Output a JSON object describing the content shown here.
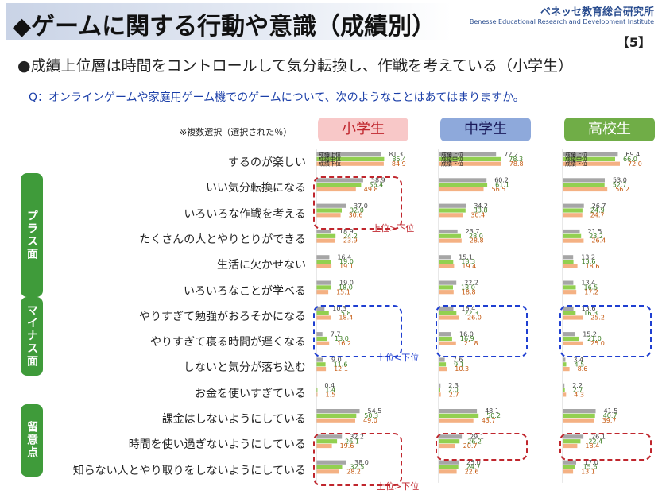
{
  "header": {
    "title": "◆ゲームに関する行動や意識（成績別）",
    "org_jp": "ベネッセ教育総合研究所",
    "org_en": "Benesse Educational Research and Development Institute",
    "page": "【5】"
  },
  "subtitle": "●成績上位層は時間をコントロールして気分転換し、作戦を考えている（小学生）",
  "question": "Q：オンラインゲームや家庭用ゲーム機でのゲームについて、次のようなことはあてはまりますか。",
  "note": "※複数選択（選択された％）",
  "categories": [
    {
      "label": "プラス面",
      "color": "#3f9b3a"
    },
    {
      "label": "マイナス面",
      "color": "#3f9b3a"
    },
    {
      "label": "留意点",
      "color": "#3f9b3a"
    }
  ],
  "annotations": {
    "upper_gt_lower": "上位>下位",
    "upper_lt_lower": "上位<下位"
  },
  "colors": {
    "upper": "#a6a6a6",
    "middle": "#92d050",
    "lower": "#f4b183",
    "highlight_red": "#c0262d",
    "highlight_blue": "#1f3fd1"
  },
  "chart_data": {
    "type": "bar",
    "orientation": "horizontal",
    "unit": "%",
    "series_names": [
      "成績上位",
      "成績中位",
      "成績下位"
    ],
    "categories": [
      "するのが楽しい",
      "いい気分転換になる",
      "いろいろな作戦を考える",
      "たくさんの人とやりとりができる",
      "生活に欠かせない",
      "いろいろなことが学べる",
      "やりすぎて勉強がおろそかになる",
      "やりすぎて寝る時間が遅くなる",
      "しないと気分が落ち込む",
      "お金を使いすぎている",
      "課金はしないようにしている",
      "時間を使い過ぎないようにしている",
      "知らない人とやり取りをしないようにしている"
    ],
    "panels": [
      {
        "name": "小学生",
        "header_color": "#f8c8c8",
        "values": [
          [
            81.3,
            85.4,
            84.9
          ],
          [
            58.9,
            56.4,
            49.8
          ],
          [
            37.0,
            32.0,
            30.6
          ],
          [
            18.9,
            24.2,
            23.9
          ],
          [
            16.4,
            19.0,
            19.1
          ],
          [
            19.0,
            18.0,
            15.1
          ],
          [
            10.3,
            15.8,
            18.4
          ],
          [
            7.7,
            13.0,
            16.2
          ],
          [
            9.0,
            11.6,
            12.1
          ],
          [
            0.4,
            1.4,
            1.5
          ],
          [
            54.5,
            50.3,
            49.0
          ],
          [
            32.2,
            26.1,
            19.6
          ],
          [
            38.0,
            32.5,
            28.2
          ]
        ]
      },
      {
        "name": "中学生",
        "header_color": "#8ea9db",
        "values": [
          [
            72.2,
            78.3,
            78.8
          ],
          [
            60.2,
            61.1,
            56.5
          ],
          [
            34.2,
            33.8,
            30.4
          ],
          [
            23.7,
            28.0,
            28.8
          ],
          [
            15.1,
            18.3,
            19.4
          ],
          [
            22.2,
            18.0,
            18.8
          ],
          [
            18.4,
            22.3,
            26.0
          ],
          [
            16.0,
            16.9,
            21.8
          ],
          [
            7.6,
            9.1,
            10.3
          ],
          [
            2.3,
            2.0,
            2.7
          ],
          [
            48.1,
            50.2,
            43.7
          ],
          [
            29.1,
            26.2,
            20.7
          ],
          [
            25.0,
            24.7,
            22.6
          ]
        ]
      },
      {
        "name": "高校生",
        "header_color": "#70ad47",
        "values": [
          [
            69.4,
            66.0,
            72.0
          ],
          [
            53.0,
            52.7,
            56.2
          ],
          [
            26.7,
            24.9,
            24.7
          ],
          [
            21.5,
            23.2,
            26.4
          ],
          [
            13.2,
            13.6,
            18.6
          ],
          [
            13.4,
            16.5,
            17.2
          ],
          [
            13.6,
            16.3,
            25.2
          ],
          [
            15.2,
            21.0,
            25.0
          ],
          [
            3.4,
            4.5,
            8.6
          ],
          [
            2.2,
            2.7,
            4.3
          ],
          [
            41.5,
            40.7,
            39.7
          ],
          [
            26.1,
            22.4,
            18.4
          ],
          [
            17.0,
            15.6,
            13.1
          ]
        ]
      }
    ]
  }
}
